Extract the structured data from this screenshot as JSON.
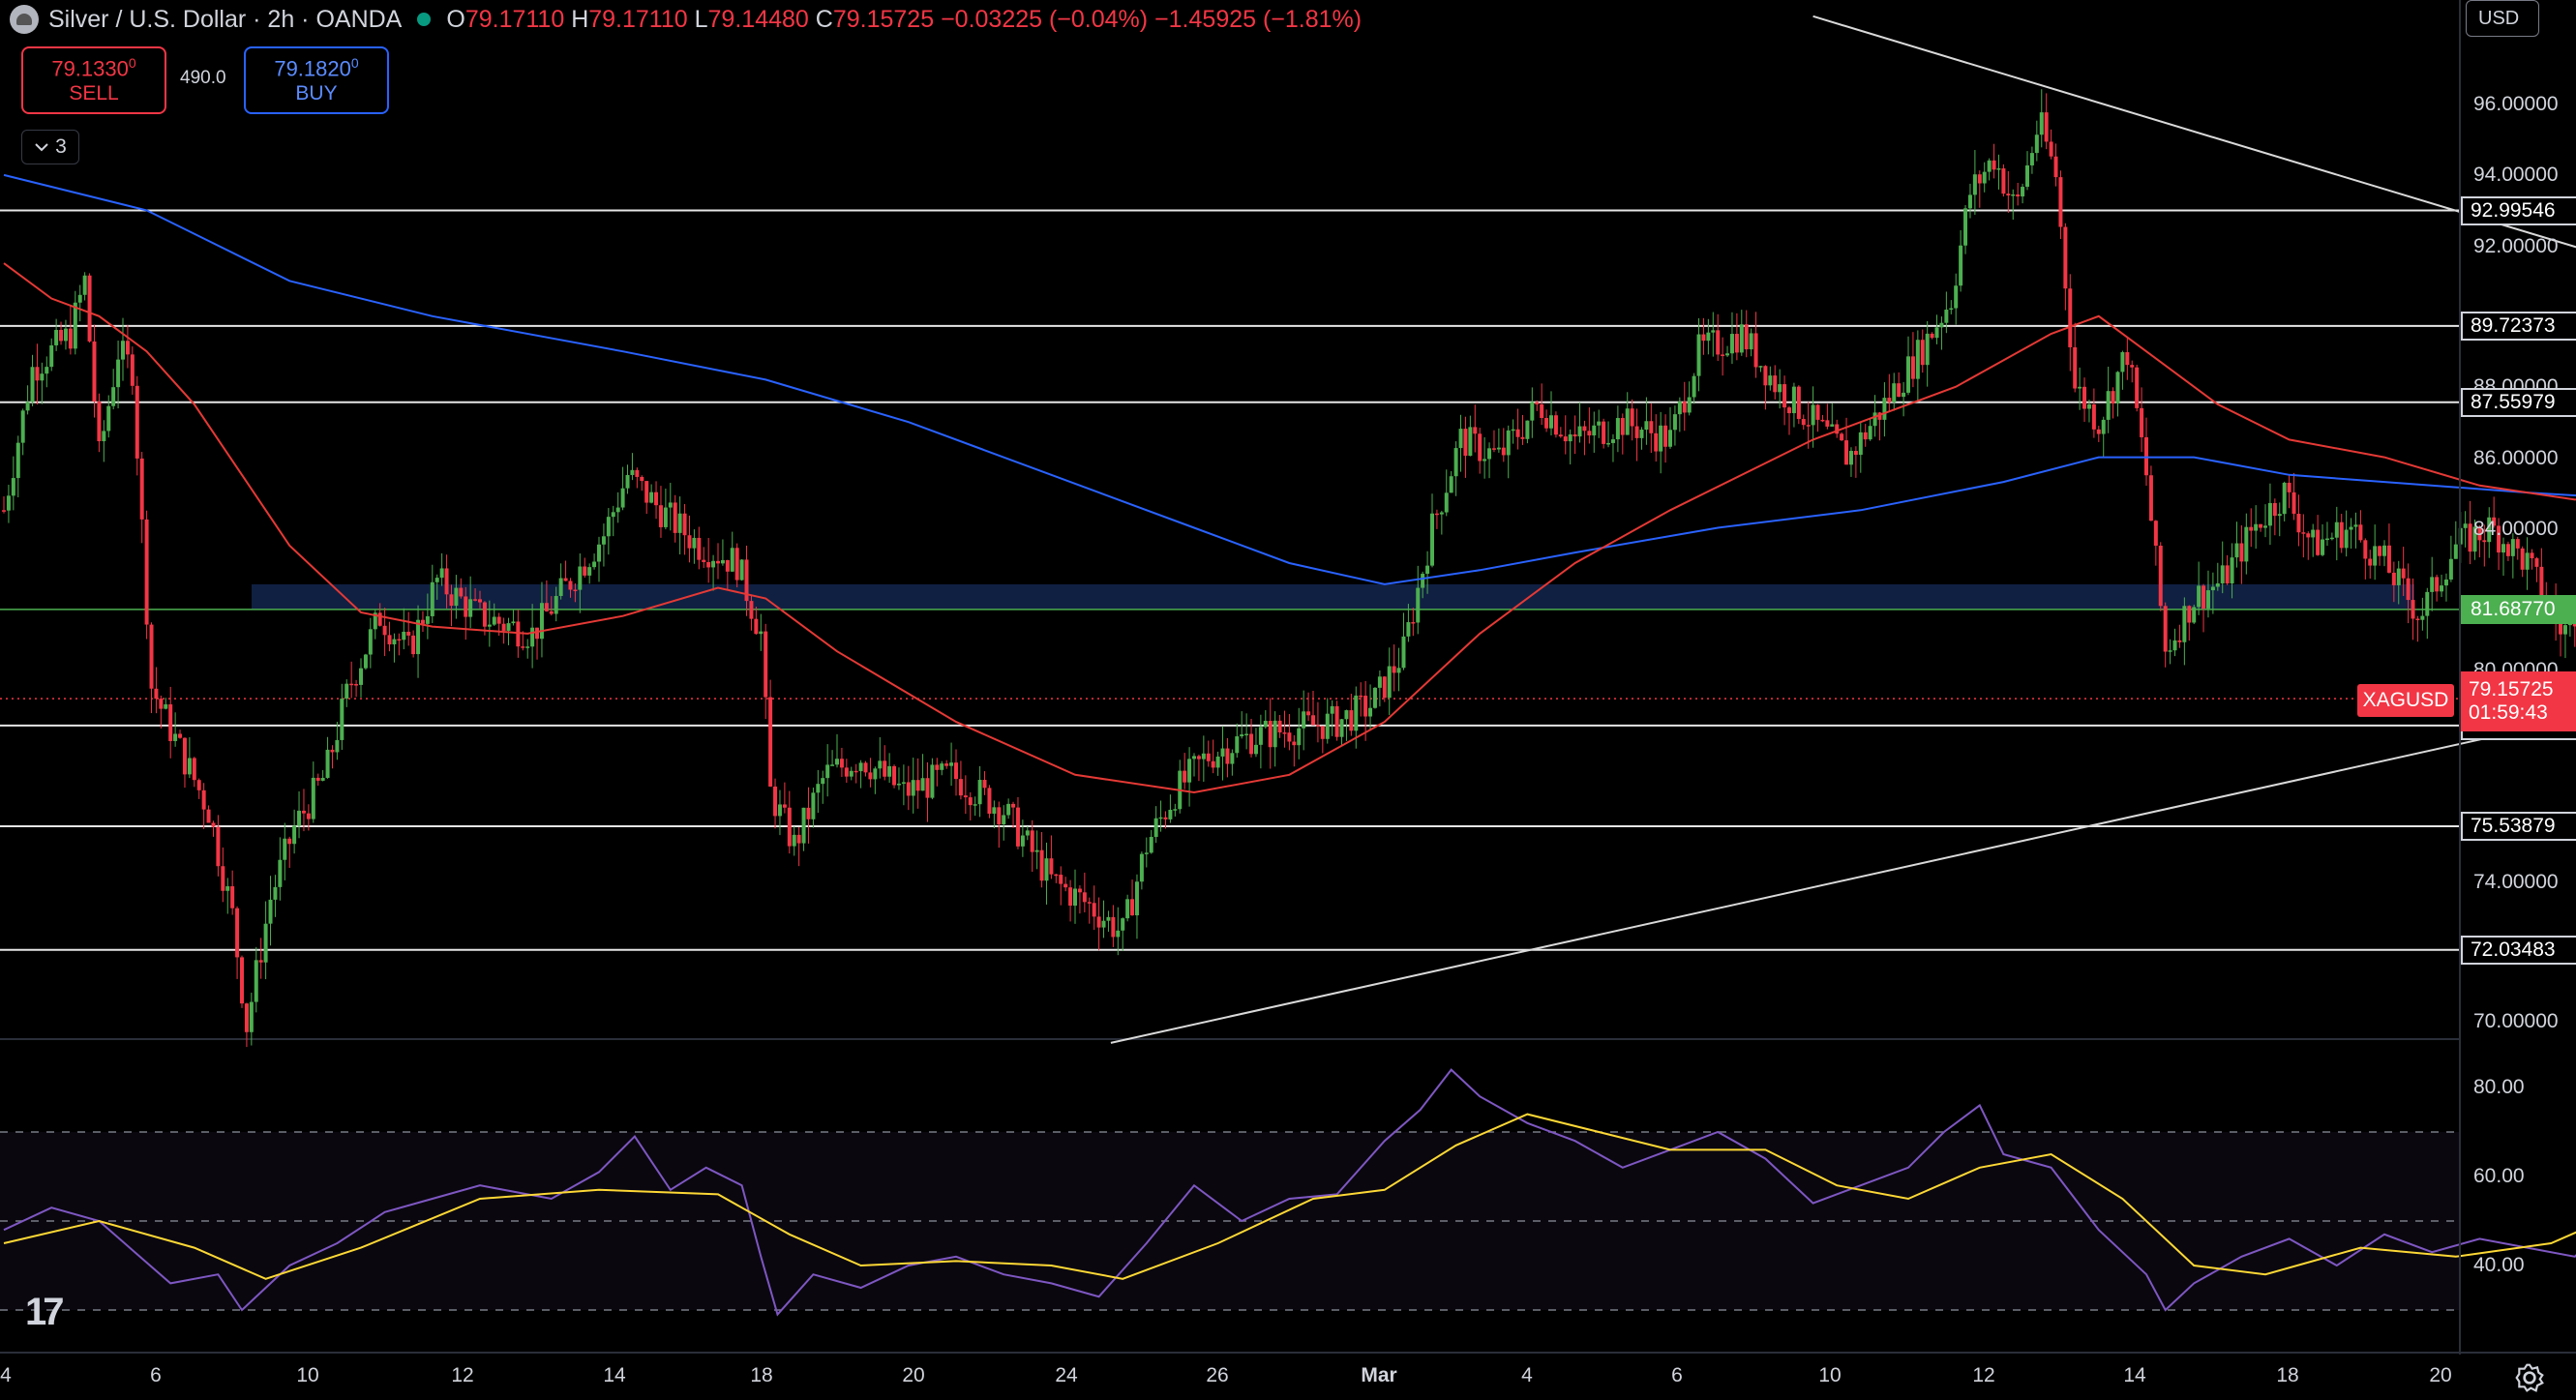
{
  "header": {
    "title": "Silver / U.S. Dollar · 2h · OANDA",
    "ohlc": [
      {
        "k": "O",
        "v": "79.17110"
      },
      {
        "k": "H",
        "v": "79.17110"
      },
      {
        "k": "L",
        "v": "79.14480"
      },
      {
        "k": "C",
        "v": "79.15725"
      }
    ],
    "change": "−0.03225 (−0.04%) −1.45925 (−1.81%)"
  },
  "trade": {
    "sell_price": "79.1330",
    "sell_super": "0",
    "sell_label": "SELL",
    "spread": "490.0",
    "buy_price": "79.1820",
    "buy_super": "0",
    "buy_label": "BUY"
  },
  "collapse_count": "3",
  "currency": "USD",
  "symbol_tag": "XAGUSD",
  "current_price": "79.15725",
  "countdown": "01:59:43",
  "colors": {
    "up": "#4caf50",
    "down": "#f23645",
    "ma_fast": "#e53935",
    "ma_slow": "#2962ff",
    "rsi": "#7e57c2",
    "rsi_ma": "#fdd835"
  },
  "icons": [
    "silver-logo-icon",
    "market-open-dot-icon",
    "chevron-down-icon",
    "tradingview-logo-icon",
    "settings-gear-icon"
  ],
  "chart_data": {
    "type": "candlestick",
    "symbol": "XAGUSD",
    "timeframe": "2h",
    "y_range": [
      69.4,
      98.0
    ],
    "y_ticks": [
      "96.00000",
      "94.00000",
      "92.00000",
      "88.00000",
      "86.00000",
      "84.00000",
      "80.00000",
      "74.00000",
      "70.00000"
    ],
    "x_ticks": [
      "4",
      "6",
      "10",
      "12",
      "14",
      "18",
      "20",
      "24",
      "26",
      "Mar",
      "4",
      "6",
      "10",
      "12",
      "14",
      "18",
      "20"
    ],
    "horizontal_levels": [
      "92.99546",
      "89.72373",
      "87.55979",
      "78.39494",
      "75.53879",
      "72.03483"
    ],
    "highlight_level": "81.68770",
    "zone": [
      81.7,
      82.4
    ],
    "close_path": [
      [
        0,
        84.5
      ],
      [
        12,
        88.5
      ],
      [
        28,
        89.5
      ],
      [
        34,
        91.0
      ],
      [
        40,
        86.0
      ],
      [
        48,
        89.0
      ],
      [
        54,
        88.5
      ],
      [
        62,
        79.5
      ],
      [
        72,
        78.0
      ],
      [
        86,
        76.0
      ],
      [
        96,
        73.0
      ],
      [
        102,
        69.9
      ],
      [
        112,
        73.5
      ],
      [
        122,
        75.5
      ],
      [
        135,
        77.0
      ],
      [
        145,
        79.5
      ],
      [
        158,
        81.5
      ],
      [
        170,
        80.5
      ],
      [
        182,
        82.5
      ],
      [
        200,
        81.5
      ],
      [
        222,
        81.0
      ],
      [
        238,
        82.5
      ],
      [
        252,
        83.8
      ],
      [
        262,
        85.5
      ],
      [
        276,
        84.5
      ],
      [
        292,
        83.5
      ],
      [
        308,
        83.0
      ],
      [
        318,
        81.0
      ],
      [
        322,
        76.5
      ],
      [
        332,
        75.0
      ],
      [
        345,
        77.0
      ],
      [
        360,
        77.5
      ],
      [
        378,
        76.5
      ],
      [
        398,
        77.0
      ],
      [
        420,
        76.0
      ],
      [
        440,
        74.0
      ],
      [
        456,
        73.3
      ],
      [
        470,
        72.5
      ],
      [
        480,
        75.0
      ],
      [
        492,
        76.5
      ],
      [
        505,
        77.5
      ],
      [
        520,
        78.0
      ],
      [
        540,
        78.3
      ],
      [
        560,
        78.5
      ],
      [
        575,
        79.0
      ],
      [
        588,
        80.5
      ],
      [
        600,
        84.0
      ],
      [
        612,
        86.5
      ],
      [
        628,
        86.0
      ],
      [
        645,
        87.5
      ],
      [
        660,
        86.5
      ],
      [
        680,
        87.0
      ],
      [
        700,
        86.5
      ],
      [
        712,
        89.0
      ],
      [
        730,
        89.5
      ],
      [
        745,
        88.0
      ],
      [
        760,
        87.0
      ],
      [
        775,
        86.0
      ],
      [
        790,
        87.5
      ],
      [
        805,
        89.0
      ],
      [
        818,
        90.5
      ],
      [
        826,
        93.5
      ],
      [
        836,
        94.5
      ],
      [
        845,
        93.0
      ],
      [
        855,
        95.5
      ],
      [
        862,
        94.0
      ],
      [
        870,
        88.0
      ],
      [
        880,
        87.0
      ],
      [
        892,
        89.0
      ],
      [
        900,
        85.5
      ],
      [
        908,
        80.5
      ],
      [
        920,
        82.0
      ],
      [
        932,
        82.5
      ],
      [
        945,
        84.0
      ],
      [
        958,
        85.0
      ],
      [
        970,
        83.5
      ],
      [
        985,
        84.0
      ],
      [
        1000,
        83.0
      ],
      [
        1015,
        81.5
      ],
      [
        1030,
        83.5
      ],
      [
        1045,
        84.0
      ],
      [
        1060,
        83.0
      ],
      [
        1075,
        81.0
      ],
      [
        1090,
        83.0
      ],
      [
        1100,
        84.0
      ],
      [
        1110,
        85.5
      ],
      [
        1120,
        88.5
      ],
      [
        1135,
        89.0
      ],
      [
        1150,
        89.5
      ],
      [
        1165,
        88.5
      ],
      [
        1180,
        87.0
      ],
      [
        1192,
        85.5
      ],
      [
        1205,
        85.0
      ],
      [
        1218,
        84.5
      ],
      [
        1230,
        86.5
      ],
      [
        1240,
        85.0
      ],
      [
        1255,
        84.0
      ],
      [
        1268,
        83.5
      ],
      [
        1278,
        84.5
      ],
      [
        1288,
        80.5
      ],
      [
        1300,
        80.0
      ],
      [
        1312,
        81.0
      ],
      [
        1322,
        79.2
      ]
    ],
    "ma_fast_path": [
      [
        0,
        91.5
      ],
      [
        20,
        90.5
      ],
      [
        40,
        90.0
      ],
      [
        60,
        89.0
      ],
      [
        80,
        87.5
      ],
      [
        100,
        85.5
      ],
      [
        120,
        83.5
      ],
      [
        150,
        81.6
      ],
      [
        180,
        81.2
      ],
      [
        220,
        81.0
      ],
      [
        260,
        81.5
      ],
      [
        300,
        82.3
      ],
      [
        320,
        82.0
      ],
      [
        350,
        80.5
      ],
      [
        400,
        78.5
      ],
      [
        450,
        77.0
      ],
      [
        500,
        76.5
      ],
      [
        540,
        77.0
      ],
      [
        580,
        78.5
      ],
      [
        620,
        81.0
      ],
      [
        660,
        83.0
      ],
      [
        700,
        84.5
      ],
      [
        760,
        86.5
      ],
      [
        820,
        88.0
      ],
      [
        860,
        89.5
      ],
      [
        880,
        90.0
      ],
      [
        900,
        89.0
      ],
      [
        930,
        87.5
      ],
      [
        960,
        86.5
      ],
      [
        1000,
        86.0
      ],
      [
        1040,
        85.2
      ],
      [
        1080,
        84.8
      ],
      [
        1110,
        85.0
      ],
      [
        1140,
        86.0
      ],
      [
        1170,
        86.5
      ],
      [
        1200,
        86.7
      ],
      [
        1240,
        86.0
      ],
      [
        1280,
        85.2
      ],
      [
        1300,
        84.5
      ],
      [
        1325,
        83.4
      ]
    ],
    "ma_slow_path": [
      [
        0,
        94.0
      ],
      [
        60,
        93.0
      ],
      [
        120,
        91.0
      ],
      [
        180,
        90.0
      ],
      [
        260,
        89.0
      ],
      [
        320,
        88.2
      ],
      [
        380,
        87.0
      ],
      [
        440,
        85.5
      ],
      [
        500,
        84.0
      ],
      [
        540,
        83.0
      ],
      [
        580,
        82.4
      ],
      [
        620,
        82.8
      ],
      [
        660,
        83.3
      ],
      [
        720,
        84.0
      ],
      [
        780,
        84.5
      ],
      [
        840,
        85.3
      ],
      [
        880,
        86.0
      ],
      [
        920,
        86.0
      ],
      [
        960,
        85.5
      ],
      [
        1000,
        85.3
      ],
      [
        1060,
        85.0
      ],
      [
        1110,
        84.8
      ],
      [
        1140,
        85.3
      ],
      [
        1170,
        85.5
      ],
      [
        1200,
        85.7
      ],
      [
        1240,
        85.7
      ],
      [
        1280,
        85.5
      ],
      [
        1325,
        85.0
      ]
    ],
    "trendlines": [
      {
        "x1": 760,
        "y1": 98.5,
        "x2": 1495,
        "y2": 83.5
      },
      {
        "x1": 465,
        "y1": 69.4,
        "x2": 1495,
        "y2": 84.8
      }
    ]
  },
  "rsi": {
    "y_ticks": [
      "80.00",
      "60.00",
      "40.00"
    ],
    "y_range": [
      22,
      85
    ],
    "bands": [
      70,
      50,
      30
    ],
    "rsi_path": [
      [
        0,
        48
      ],
      [
        20,
        53
      ],
      [
        40,
        50
      ],
      [
        55,
        43
      ],
      [
        70,
        36
      ],
      [
        90,
        38
      ],
      [
        100,
        30
      ],
      [
        120,
        40
      ],
      [
        140,
        45
      ],
      [
        160,
        52
      ],
      [
        180,
        55
      ],
      [
        200,
        58
      ],
      [
        230,
        55
      ],
      [
        250,
        61
      ],
      [
        265,
        69
      ],
      [
        280,
        57
      ],
      [
        295,
        62
      ],
      [
        310,
        58
      ],
      [
        318,
        42
      ],
      [
        325,
        29
      ],
      [
        340,
        38
      ],
      [
        360,
        35
      ],
      [
        380,
        40
      ],
      [
        400,
        42
      ],
      [
        420,
        38
      ],
      [
        440,
        36
      ],
      [
        460,
        33
      ],
      [
        480,
        45
      ],
      [
        500,
        58
      ],
      [
        520,
        50
      ],
      [
        540,
        55
      ],
      [
        560,
        56
      ],
      [
        580,
        68
      ],
      [
        595,
        75
      ],
      [
        608,
        84
      ],
      [
        620,
        78
      ],
      [
        640,
        72
      ],
      [
        660,
        68
      ],
      [
        680,
        62
      ],
      [
        700,
        66
      ],
      [
        720,
        70
      ],
      [
        740,
        64
      ],
      [
        760,
        54
      ],
      [
        780,
        58
      ],
      [
        800,
        62
      ],
      [
        815,
        70
      ],
      [
        830,
        76
      ],
      [
        840,
        65
      ],
      [
        860,
        62
      ],
      [
        880,
        48
      ],
      [
        900,
        38
      ],
      [
        908,
        30
      ],
      [
        920,
        36
      ],
      [
        940,
        42
      ],
      [
        960,
        46
      ],
      [
        980,
        40
      ],
      [
        1000,
        47
      ],
      [
        1020,
        43
      ],
      [
        1040,
        46
      ],
      [
        1060,
        44
      ],
      [
        1080,
        42
      ],
      [
        1100,
        53
      ],
      [
        1120,
        68
      ],
      [
        1140,
        66
      ],
      [
        1160,
        64
      ],
      [
        1180,
        52
      ],
      [
        1195,
        45
      ],
      [
        1210,
        42
      ],
      [
        1230,
        55
      ],
      [
        1245,
        44
      ],
      [
        1260,
        40
      ],
      [
        1275,
        44
      ],
      [
        1290,
        35
      ],
      [
        1305,
        37
      ],
      [
        1325,
        35
      ]
    ],
    "rsi_ma_path": [
      [
        0,
        45
      ],
      [
        40,
        50
      ],
      [
        80,
        44
      ],
      [
        110,
        37
      ],
      [
        150,
        44
      ],
      [
        200,
        55
      ],
      [
        250,
        57
      ],
      [
        300,
        56
      ],
      [
        330,
        47
      ],
      [
        360,
        40
      ],
      [
        400,
        41
      ],
      [
        440,
        40
      ],
      [
        470,
        37
      ],
      [
        510,
        45
      ],
      [
        550,
        55
      ],
      [
        580,
        57
      ],
      [
        610,
        67
      ],
      [
        640,
        74
      ],
      [
        670,
        70
      ],
      [
        700,
        66
      ],
      [
        740,
        66
      ],
      [
        770,
        58
      ],
      [
        800,
        55
      ],
      [
        830,
        62
      ],
      [
        860,
        65
      ],
      [
        890,
        55
      ],
      [
        920,
        40
      ],
      [
        950,
        38
      ],
      [
        990,
        44
      ],
      [
        1030,
        42
      ],
      [
        1070,
        45
      ],
      [
        1100,
        52
      ],
      [
        1130,
        60
      ],
      [
        1160,
        66
      ],
      [
        1190,
        58
      ],
      [
        1220,
        47
      ],
      [
        1260,
        46
      ],
      [
        1290,
        40
      ],
      [
        1325,
        37
      ]
    ]
  }
}
